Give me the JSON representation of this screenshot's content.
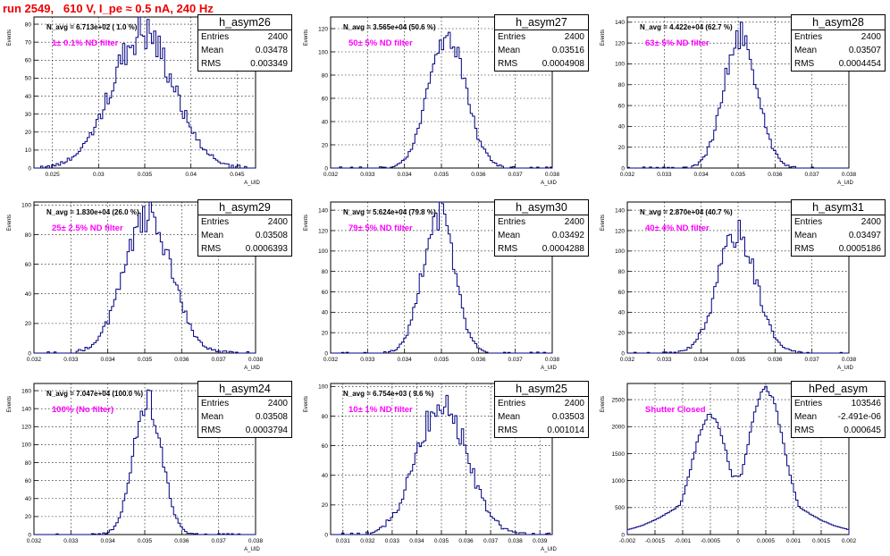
{
  "run_title": "run 2549,   610 V, I_pe ≈ 0.5 nA, 240 Hz",
  "stat_labels": {
    "entries": "Entries",
    "mean": "Mean",
    "rms": "RMS"
  },
  "line_color": "#000080",
  "annotation_color": "#ff00ff",
  "title_color": "#ee0000",
  "chart_data": [
    {
      "type": "histogram",
      "name": "h_asym26",
      "navg": "N_avg = 6.713e+02 ( 1.0 %)",
      "filter": "1± 0.1% ND filter",
      "stats": {
        "entries": "2400",
        "mean": "0.03478",
        "rms": "0.003349"
      },
      "ylabel": "Events",
      "xlabel": "A_UID",
      "xlim": [
        0.023,
        0.047
      ],
      "ylim": [
        0,
        84
      ],
      "xticks": [
        0.025,
        0.03,
        0.035,
        0.04,
        0.045
      ],
      "xtick_labels": [
        "0.025",
        "0.03",
        "0.035",
        "0.04",
        "0.045"
      ],
      "yticks": [
        0,
        10,
        20,
        30,
        40,
        50,
        60,
        70,
        80
      ],
      "ytick_labels": [
        "0",
        "10",
        "20",
        "30",
        "40",
        "50",
        "60",
        "70",
        "80"
      ],
      "curve": {
        "shape": "gauss",
        "mean": 0.03478,
        "sigma": 0.003349,
        "peak": 76,
        "noise": 0.15,
        "seed": 26
      }
    },
    {
      "type": "histogram",
      "name": "h_asym27",
      "navg": "N_avg = 3.565e+04 (50.6 %)",
      "filter": "50± 5% ND filter",
      "stats": {
        "entries": "2400",
        "mean": "0.03516",
        "rms": "0.0004908"
      },
      "ylabel": "Events",
      "xlabel": "A_UID",
      "xlim": [
        0.032,
        0.038
      ],
      "ylim": [
        0,
        130
      ],
      "xticks": [
        0.032,
        0.033,
        0.034,
        0.035,
        0.036,
        0.037,
        0.038
      ],
      "xtick_labels": [
        "0.032",
        "0.033",
        "0.034",
        "0.035",
        "0.036",
        "0.037",
        "0.038"
      ],
      "yticks": [
        0,
        20,
        40,
        60,
        80,
        100,
        120
      ],
      "ytick_labels": [
        "0",
        "20",
        "40",
        "60",
        "80",
        "100",
        "120"
      ],
      "curve": {
        "shape": "gauss",
        "mean": 0.03516,
        "sigma": 0.0004908,
        "peak": 118,
        "noise": 0.12,
        "seed": 27
      }
    },
    {
      "type": "histogram",
      "name": "h_asym28",
      "navg": "N_avg = 4.422e+04 (62.7 %)",
      "filter": "63± 5% ND filter",
      "stats": {
        "entries": "2400",
        "mean": "0.03507",
        "rms": "0.0004454"
      },
      "ylabel": "Events",
      "xlabel": "A_UID",
      "xlim": [
        0.032,
        0.038
      ],
      "ylim": [
        0,
        145
      ],
      "xticks": [
        0.032,
        0.033,
        0.034,
        0.035,
        0.036,
        0.037,
        0.038
      ],
      "xtick_labels": [
        "0.032",
        "0.033",
        "0.034",
        "0.035",
        "0.036",
        "0.037",
        "0.038"
      ],
      "yticks": [
        0,
        20,
        40,
        60,
        80,
        100,
        120,
        140
      ],
      "ytick_labels": [
        "0",
        "20",
        "40",
        "60",
        "80",
        "100",
        "120",
        "140"
      ],
      "curve": {
        "shape": "gauss",
        "mean": 0.03507,
        "sigma": 0.0004454,
        "peak": 130,
        "noise": 0.12,
        "seed": 28
      }
    },
    {
      "type": "histogram",
      "name": "h_asym29",
      "navg": "N_avg = 1.830e+04 (26.0 %)",
      "filter": "25± 2.5% ND filter",
      "stats": {
        "entries": "2400",
        "mean": "0.03508",
        "rms": "0.0006393"
      },
      "ylabel": "Events",
      "xlabel": "A_UID",
      "xlim": [
        0.032,
        0.038
      ],
      "ylim": [
        0,
        102
      ],
      "xticks": [
        0.032,
        0.033,
        0.034,
        0.035,
        0.036,
        0.037,
        0.038
      ],
      "xtick_labels": [
        "0.032",
        "0.033",
        "0.034",
        "0.035",
        "0.036",
        "0.037",
        "0.038"
      ],
      "yticks": [
        0,
        20,
        40,
        60,
        80,
        100
      ],
      "ytick_labels": [
        "0",
        "20",
        "40",
        "60",
        "80",
        "100"
      ],
      "curve": {
        "shape": "gauss",
        "mean": 0.03508,
        "sigma": 0.0006393,
        "peak": 92,
        "noise": 0.12,
        "seed": 29
      }
    },
    {
      "type": "histogram",
      "name": "h_asym30",
      "navg": "N_avg = 5.624e+04 (79.8 %)",
      "filter": "79± 5% ND filter",
      "stats": {
        "entries": "2400",
        "mean": "0.03492",
        "rms": "0.0004288"
      },
      "ylabel": "Events",
      "xlabel": "A_UID",
      "xlim": [
        0.032,
        0.038
      ],
      "ylim": [
        0,
        148
      ],
      "xticks": [
        0.032,
        0.033,
        0.034,
        0.035,
        0.036,
        0.037,
        0.038
      ],
      "xtick_labels": [
        "0.032",
        "0.033",
        "0.034",
        "0.035",
        "0.036",
        "0.037",
        "0.038"
      ],
      "yticks": [
        0,
        20,
        40,
        60,
        80,
        100,
        120,
        140
      ],
      "ytick_labels": [
        "0",
        "20",
        "40",
        "60",
        "80",
        "100",
        "120",
        "140"
      ],
      "curve": {
        "shape": "gauss",
        "mean": 0.03492,
        "sigma": 0.0004288,
        "peak": 135,
        "noise": 0.12,
        "seed": 30
      }
    },
    {
      "type": "histogram",
      "name": "h_asym31",
      "navg": "N_avg = 2.870e+04 (40.7 %)",
      "filter": "40± 4% ND filter",
      "stats": {
        "entries": "2400",
        "mean": "0.03497",
        "rms": "0.0005186"
      },
      "ylabel": "Events",
      "xlabel": "A_UID",
      "xlim": [
        0.032,
        0.038
      ],
      "ylim": [
        0,
        148
      ],
      "xticks": [
        0.032,
        0.033,
        0.034,
        0.035,
        0.036,
        0.037,
        0.038
      ],
      "xtick_labels": [
        "0.032",
        "0.033",
        "0.034",
        "0.035",
        "0.036",
        "0.037",
        "0.038"
      ],
      "yticks": [
        0,
        20,
        40,
        60,
        80,
        100,
        120,
        140
      ],
      "ytick_labels": [
        "0",
        "20",
        "40",
        "60",
        "80",
        "100",
        "120",
        "140"
      ],
      "curve": {
        "shape": "gauss",
        "mean": 0.03497,
        "sigma": 0.0005186,
        "peak": 118,
        "noise": 0.12,
        "seed": 31
      }
    },
    {
      "type": "histogram",
      "name": "h_asym24",
      "navg": "N_avg = 7.047e+04 (100.0 %)",
      "filter": "100% (No filter)",
      "stats": {
        "entries": "2400",
        "mean": "0.03508",
        "rms": "0.0003794"
      },
      "ylabel": "Events",
      "xlabel": "A_UID",
      "xlim": [
        0.032,
        0.038
      ],
      "ylim": [
        0,
        168
      ],
      "xticks": [
        0.032,
        0.033,
        0.034,
        0.035,
        0.036,
        0.037,
        0.038
      ],
      "xtick_labels": [
        "0.032",
        "0.033",
        "0.034",
        "0.035",
        "0.036",
        "0.037",
        "0.038"
      ],
      "yticks": [
        0,
        20,
        40,
        60,
        80,
        100,
        120,
        140,
        160
      ],
      "ytick_labels": [
        "0",
        "20",
        "40",
        "60",
        "80",
        "100",
        "120",
        "140",
        "160"
      ],
      "curve": {
        "shape": "gauss",
        "mean": 0.03508,
        "sigma": 0.0003794,
        "peak": 150,
        "noise": 0.1,
        "seed": 24
      }
    },
    {
      "type": "histogram",
      "name": "h_asym25",
      "navg": "N_avg = 6.754e+03 ( 9.6 %)",
      "filter": "10± 1% ND filter",
      "stats": {
        "entries": "2400",
        "mean": "0.03503",
        "rms": "0.001014"
      },
      "ylabel": "Events",
      "xlabel": "A_UID",
      "xlim": [
        0.0305,
        0.0395
      ],
      "ylim": [
        0,
        102
      ],
      "xticks": [
        0.031,
        0.032,
        0.033,
        0.034,
        0.035,
        0.036,
        0.037,
        0.038,
        0.039
      ],
      "xtick_labels": [
        "0.031",
        "0.032",
        "0.033",
        "0.034",
        "0.035",
        "0.036",
        "0.037",
        "0.038",
        "0.039"
      ],
      "yticks": [
        0,
        20,
        40,
        60,
        80,
        100
      ],
      "ytick_labels": [
        "0",
        "20",
        "40",
        "60",
        "80",
        "100"
      ],
      "curve": {
        "shape": "gauss",
        "mean": 0.03503,
        "sigma": 0.001014,
        "peak": 90,
        "noise": 0.13,
        "seed": 25
      }
    },
    {
      "type": "histogram",
      "name": "hPed_asym",
      "navg": "",
      "filter": "Shutter Closed",
      "stats": {
        "entries": "103546",
        "mean": "-2.491e-06",
        "rms": "0.000645"
      },
      "ylabel": "Events",
      "xlabel": "",
      "xlim": [
        -0.002,
        0.002
      ],
      "ylim": [
        0,
        2800
      ],
      "xticks": [
        -0.002,
        -0.0015,
        -0.001,
        -0.0005,
        0,
        0.0005,
        0.001,
        0.0015,
        0.002
      ],
      "xtick_labels": [
        "-0.002",
        "-0.0015",
        "-0.001",
        "-0.0005",
        "0",
        "0.0005",
        "0.001",
        "0.0015",
        "0.002"
      ],
      "yticks": [
        0,
        500,
        1000,
        1500,
        2000,
        2500
      ],
      "ytick_labels": [
        "0",
        "500",
        "1000",
        "1500",
        "2000",
        "2500"
      ],
      "curve": {
        "shape": "double",
        "mean1": -0.0005,
        "mean2": 0.0005,
        "sigma": 0.00033,
        "peak1": 2200,
        "peak2": 2700,
        "dip": 1080,
        "noise": 0.02,
        "seed": 99
      }
    }
  ]
}
